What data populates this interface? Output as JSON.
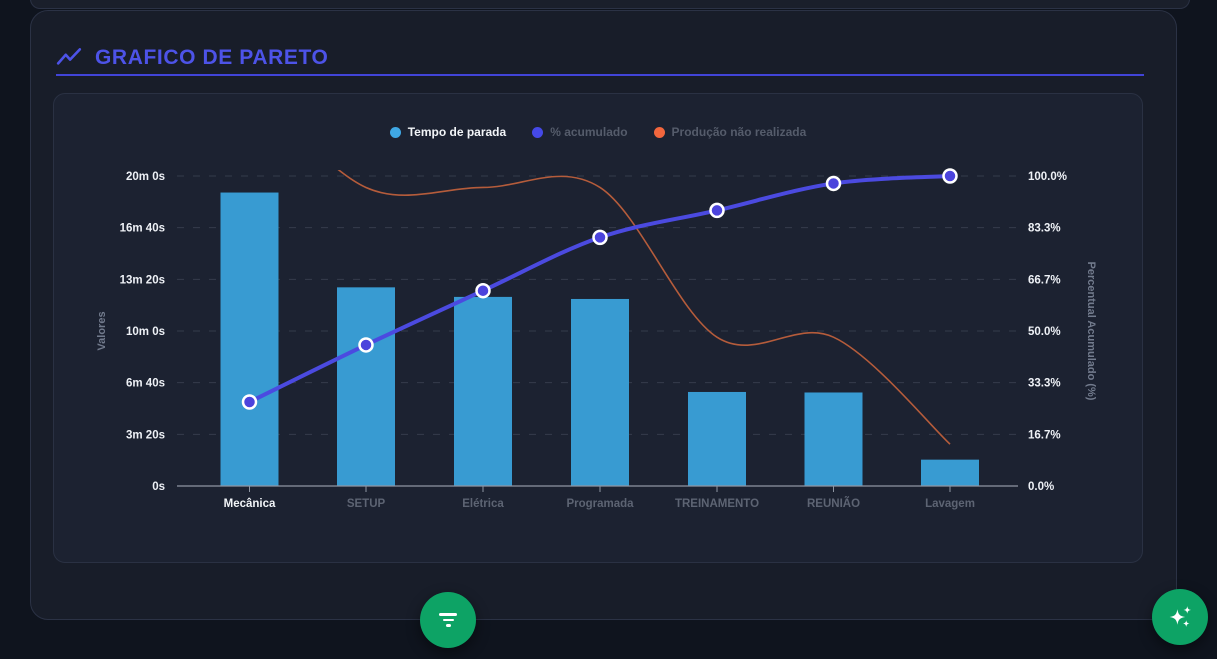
{
  "header": {
    "title": "GRAFICO DE PARETO"
  },
  "legend": [
    {
      "label": "Tempo de parada",
      "color": "#3fa8e5",
      "active": true
    },
    {
      "label": "% acumulado",
      "color": "#4549e8",
      "active": false
    },
    {
      "label": "Produção não realizada",
      "color": "#f2663d",
      "active": false
    }
  ],
  "chart_data": {
    "type": "bar",
    "subtype": "pareto (bars + cumulative % line + secondary line)",
    "title": "GRAFICO DE PARETO",
    "categories": [
      "Mecânica",
      "SETUP",
      "Elétrica",
      "Programada",
      "TREINAMENTO",
      "REUNIÃO",
      "Lavagem"
    ],
    "highlighted_category": "Mecânica",
    "series": [
      {
        "name": "Tempo de parada",
        "type": "bar",
        "axis": "left",
        "unit": "seconds",
        "values": [
          1136,
          769,
          732,
          724,
          364,
          362,
          102
        ]
      },
      {
        "name": "% acumulado",
        "type": "line",
        "axis": "right",
        "unit": "percent",
        "values": [
          27.1,
          45.5,
          63.0,
          80.2,
          88.9,
          97.6,
          100.0
        ]
      },
      {
        "name": "Produção não realizada",
        "type": "line",
        "axis": "right",
        "unit": "percent",
        "values": [
          130,
          96.3,
          96.3,
          96.3,
          48.0,
          48.0,
          13.5
        ],
        "note": "first point is above the axis max and is clipped at the chart top"
      }
    ],
    "left_axis": {
      "label": "Valores",
      "min": 0,
      "max": 1200,
      "ticks_top_to_bottom": [
        "20m 0s",
        "16m 40s",
        "13m 20s",
        "10m 0s",
        "6m 40s",
        "3m 20s",
        "0s"
      ]
    },
    "right_axis": {
      "label": "Percentual Acumulado (%)",
      "min": 0,
      "max": 100,
      "ticks_top_to_bottom": [
        "100.0%",
        "83.3%",
        "66.7%",
        "50.0%",
        "33.3%",
        "16.7%",
        "0.0%"
      ]
    },
    "grid": "horizontal dashed lines",
    "legend_position": "top center"
  },
  "colors": {
    "accent_purple": "#4d53e8",
    "underline_purple": "#4144d8",
    "bar_blue": "#389bd2",
    "cumulative_line": "#4b4ae0",
    "marker_fill": "#4b43dc",
    "marker_ring": "#ffffff",
    "secondary_line": "#b55c3b",
    "gridline": "#353c4c",
    "axis_line": "#8e95a2",
    "fab_green": "#0da365",
    "text_bright": "#eef1f6",
    "text_dim": "#5d6473"
  },
  "fab": {
    "filter_icon": "filter-icon",
    "ai_icon": "sparkles-icon"
  }
}
